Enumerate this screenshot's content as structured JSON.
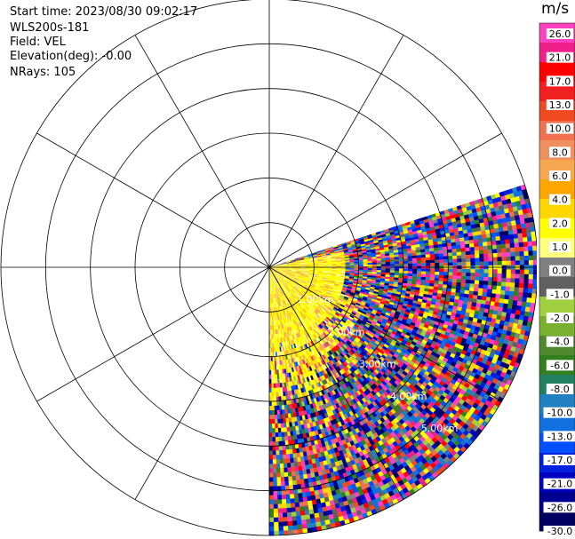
{
  "header": {
    "start_time": "Start time: 2023/08/30 09:02:17",
    "instrument": "WLS200s-181",
    "field": "Field: VEL",
    "elevation": "Elevation(deg): -0.00",
    "nrays": "NRays: 105"
  },
  "chart_data": {
    "type": "heatmap",
    "projection": "polar-ppi",
    "field": "VEL",
    "units": "m/s",
    "elevation_deg": -0.0,
    "nrays": 105,
    "azimuth_start_deg": 72,
    "azimuth_end_deg": 180,
    "range_max_km": 6.0,
    "range_rings_km": [
      1,
      2,
      3,
      4,
      5
    ],
    "range_labels": [
      "1.00km",
      "2.00km",
      "3.00km",
      "4.00km",
      "5.00km"
    ],
    "colorbar": {
      "unit_label": "m/s",
      "ticks": [
        "26.0",
        "21.0",
        "17.0",
        "13.0",
        "10.0",
        "8.0",
        "6.0",
        "4.0",
        "2.0",
        "1.0",
        "0.0",
        "-1.0",
        "-2.0",
        "-4.0",
        "-6.0",
        "-8.0",
        "-10.0",
        "-13.0",
        "-17.0",
        "-21.0",
        "-26.0",
        "-30.0"
      ],
      "colors": [
        "#ff40c0",
        "#f0208a",
        "#ff0000",
        "#f02020",
        "#f04a20",
        "#f07050",
        "#f09060",
        "#f5a850",
        "#ffa500",
        "#ffd700",
        "#ffff00",
        "#ffff80",
        "#808080",
        "#606060",
        "#a0d040",
        "#7ab030",
        "#508830",
        "#308020",
        "#208060",
        "#2080c0",
        "#1070e0",
        "#0050ff",
        "#0020e0",
        "#0000c0",
        "#000090",
        "#000060"
      ]
    }
  }
}
